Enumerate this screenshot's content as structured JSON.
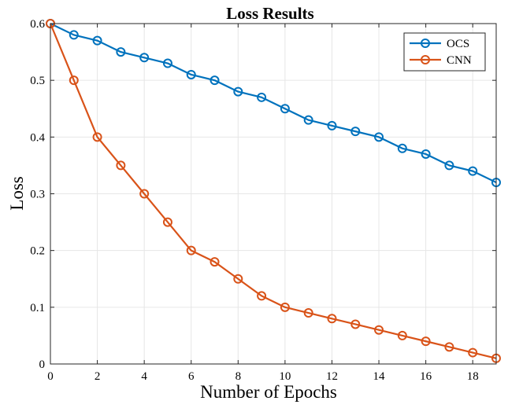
{
  "chart_data": {
    "type": "line",
    "title": "Loss Results",
    "xlabel": "Number of Epochs",
    "ylabel": "Loss",
    "xlim": [
      0,
      19
    ],
    "ylim": [
      0,
      0.6
    ],
    "xticks": [
      0,
      2,
      4,
      6,
      8,
      10,
      12,
      14,
      16,
      18
    ],
    "xtick_labels": [
      "0",
      "2",
      "4",
      "6",
      "8",
      "10",
      "12",
      "14",
      "16",
      "18"
    ],
    "yticks": [
      0,
      0.1,
      0.2,
      0.3,
      0.4,
      0.5,
      0.6
    ],
    "ytick_labels": [
      "0",
      "0.1",
      "0.2",
      "0.3",
      "0.4",
      "0.5",
      "0.6"
    ],
    "grid": true,
    "legend_position": "top-right",
    "x": [
      0,
      1,
      2,
      3,
      4,
      5,
      6,
      7,
      8,
      9,
      10,
      11,
      12,
      13,
      14,
      15,
      16,
      17,
      18,
      19
    ],
    "series": [
      {
        "name": "OCS",
        "color": "#0072BD",
        "marker": "circle",
        "values": [
          0.6,
          0.58,
          0.57,
          0.55,
          0.54,
          0.53,
          0.51,
          0.5,
          0.48,
          0.47,
          0.45,
          0.43,
          0.42,
          0.41,
          0.4,
          0.38,
          0.37,
          0.35,
          0.34,
          0.32
        ]
      },
      {
        "name": "CNN",
        "color": "#D95319",
        "marker": "circle",
        "values": [
          0.6,
          0.5,
          0.4,
          0.35,
          0.3,
          0.25,
          0.2,
          0.18,
          0.15,
          0.12,
          0.1,
          0.09,
          0.08,
          0.07,
          0.06,
          0.05,
          0.04,
          0.03,
          0.02,
          0.01
        ]
      }
    ]
  }
}
